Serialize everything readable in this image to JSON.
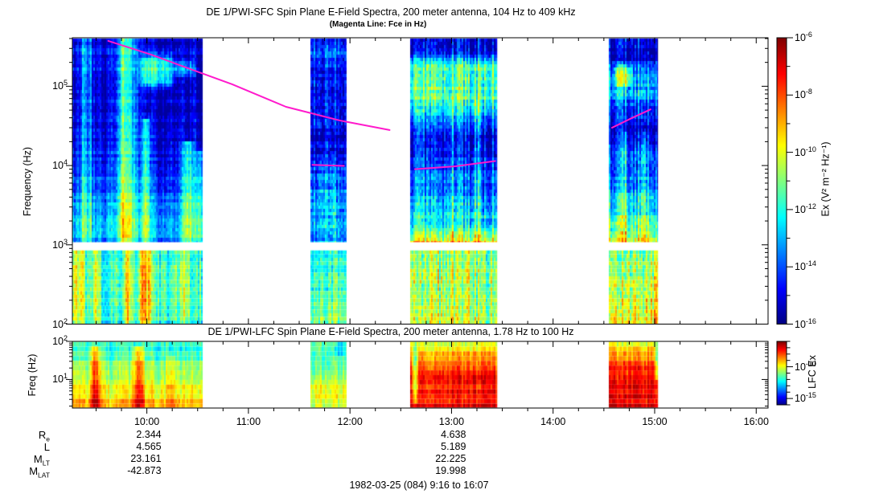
{
  "figure": {
    "title": "DE 1/PWI-SFC  Spin Plane E-Field Spectra, 200 meter antenna, 104 Hz to 409 kHz",
    "subtitle": "(Magenta Line: Fce in Hz)",
    "lfc_title": "DE 1/PWI-LFC  Spin Plane E-Field Spectra, 200 meter antenna, 1.78 Hz to 100 Hz",
    "footer": "1982-03-25 (084) 9:16 to 16:07"
  },
  "axes": {
    "time": {
      "start": "9:16",
      "end": "16:07",
      "hour_labels": [
        "10:00",
        "11:00",
        "12:00",
        "13:00",
        "14:00",
        "15:00",
        "16:00"
      ],
      "minor_minutes": 15
    },
    "sfc_freq": {
      "label": "Frequency (Hz)",
      "min_hz": 100,
      "max_hz": 409000,
      "tick_exponents": [
        5,
        4,
        3,
        2
      ]
    },
    "lfc_freq": {
      "label": "Freq (Hz)",
      "min_hz": 1.78,
      "max_hz": 100,
      "tick_exponents": [
        2,
        1
      ]
    }
  },
  "colorbars": {
    "sfc": {
      "label": "Ex (V² m⁻² Hz⁻¹)",
      "tick_exponents": [
        -6,
        -8,
        -10,
        -12,
        -14,
        -16
      ],
      "max_exp": -6,
      "min_exp": -16
    },
    "lfc": {
      "label": "LFC Ex",
      "tick_exponents": [
        -10,
        -15
      ],
      "max_exp": -6,
      "min_exp": -16
    }
  },
  "ephemeris": {
    "row_labels": [
      {
        "main": "R",
        "sub": "e"
      },
      {
        "main": "L",
        "sub": ""
      },
      {
        "main": "M",
        "sub": "LT"
      },
      {
        "main": "M",
        "sub": "LAT"
      }
    ],
    "columns": [
      {
        "time": "10:00",
        "values": [
          "2.344",
          "4.565",
          "23.161",
          "-42.873"
        ]
      },
      {
        "time": "13:00",
        "values": [
          "4.638",
          "5.189",
          "22.225",
          "19.998"
        ]
      }
    ]
  },
  "chart_data": {
    "type": "heatmap",
    "colormap": "jet",
    "description": "Two time-frequency spectrograms (DE-1 PWI SFC and LFC electric field spectral density) vs UT on 1982-03-25, with data gaps; magenta line is electron cyclotron frequency Fce.",
    "sfc_band_split_hz": [
      850,
      1080
    ],
    "fce_line_hz": [
      {
        "points": [
          [
            9.62,
            373000
          ],
          [
            10.04,
            251000
          ],
          [
            10.3,
            189000
          ],
          [
            10.84,
            106000
          ],
          [
            11.37,
            55000
          ],
          [
            11.9,
            37000
          ],
          [
            12.39,
            28000
          ]
        ]
      },
      {
        "points": [
          [
            11.63,
            10200
          ],
          [
            11.94,
            9900
          ]
        ]
      },
      {
        "points": [
          [
            12.64,
            9000
          ],
          [
            13.04,
            9800
          ],
          [
            13.43,
            11400
          ]
        ]
      },
      {
        "points": [
          [
            14.58,
            30000
          ],
          [
            14.78,
            40000
          ],
          [
            14.96,
            51000
          ]
        ]
      }
    ],
    "segments": [
      {
        "id": 1,
        "start": "9:16",
        "end": "10:33",
        "sfc_upper": {
          "base": [
            [
              0,
              0.07
            ],
            [
              0.55,
              0.09
            ],
            [
              0.62,
              0.14
            ],
            [
              0.75,
              0.2
            ],
            [
              0.88,
              0.26
            ],
            [
              1,
              0.26
            ]
          ],
          "col_amp": 0.08,
          "row_amp": 0.05,
          "cell_amp": 0.05,
          "columns": [
            {
              "p": 0.08,
              "w": 0.018,
              "s": 0.28,
              "y0": 0.0,
              "y1": 1
            },
            {
              "p": 0.13,
              "w": 0.012,
              "s": 0.22,
              "y0": 0.05,
              "y1": 1
            },
            {
              "p": 0.4,
              "w": 0.05,
              "s": 0.42,
              "y0": 0.03,
              "y1": 1
            },
            {
              "p": 0.56,
              "w": 0.02,
              "s": 0.3,
              "y0": 0.45,
              "y1": 1
            },
            {
              "p": 0.88,
              "w": 0.03,
              "s": 0.3,
              "y0": 0.55,
              "y1": 1
            },
            {
              "p": 0.97,
              "w": 0.02,
              "s": 0.25,
              "y0": 0.6,
              "y1": 1
            }
          ],
          "blobs": [
            {
              "x0": 0.48,
              "x1": 0.8,
              "y0": 0.06,
              "y1": 0.26,
              "s": 0.33
            },
            {
              "x0": 0.75,
              "x1": 0.95,
              "y0": 0.1,
              "y1": 0.2,
              "s": 0.18
            }
          ]
        },
        "sfc_lower": {
          "base": [
            [
              0,
              0.4
            ],
            [
              0.6,
              0.44
            ],
            [
              0.9,
              0.42
            ],
            [
              1,
              0.38
            ]
          ],
          "col_amp": 0.09,
          "row_amp": 0.03,
          "cell_amp": 0.06,
          "columns": [
            {
              "p": 0.05,
              "w": 0.03,
              "s": 0.22,
              "y0": 0,
              "y1": 1
            },
            {
              "p": 0.18,
              "w": 0.015,
              "s": 0.2,
              "y0": 0,
              "y1": 1
            },
            {
              "p": 0.42,
              "w": 0.02,
              "s": 0.2,
              "y0": 0,
              "y1": 1
            },
            {
              "p": 0.55,
              "w": 0.04,
              "s": 0.3,
              "y0": 0,
              "y1": 1
            },
            {
              "p": 0.85,
              "w": 0.03,
              "s": 0.15,
              "y0": 0,
              "y1": 1
            }
          ],
          "blobs": []
        },
        "lfc": {
          "base": [
            [
              0,
              0.4
            ],
            [
              0.25,
              0.47
            ],
            [
              0.5,
              0.55
            ],
            [
              0.75,
              0.64
            ],
            [
              1,
              0.7
            ]
          ],
          "col_amp": 0.06,
          "row_amp": 0.05,
          "cell_amp": 0.04,
          "columns": [
            {
              "p": 0.17,
              "w": 0.025,
              "s": 0.28,
              "y0": 0.12,
              "y1": 1
            },
            {
              "p": 0.5,
              "w": 0.03,
              "s": 0.28,
              "y0": 0.1,
              "y1": 1
            },
            {
              "p": 0.75,
              "w": 0.02,
              "s": 0.12,
              "y0": 0.3,
              "y1": 1
            }
          ],
          "blobs": []
        }
      },
      {
        "id": 2,
        "start": "11:37",
        "end": "11:58",
        "sfc_upper": {
          "base": [
            [
              0,
              0.12
            ],
            [
              0.08,
              0.22
            ],
            [
              0.16,
              0.13
            ],
            [
              0.3,
              0.15
            ],
            [
              0.42,
              0.12
            ],
            [
              0.55,
              0.1
            ],
            [
              0.62,
              0.16
            ],
            [
              0.72,
              0.25
            ],
            [
              0.85,
              0.3
            ],
            [
              1,
              0.28
            ]
          ],
          "col_amp": 0.08,
          "row_amp": 0.06,
          "cell_amp": 0.07,
          "columns": [
            {
              "p": 0.3,
              "w": 0.05,
              "s": 0.1,
              "y0": 0.6,
              "y1": 1
            },
            {
              "p": 0.6,
              "w": 0.04,
              "s": 0.12,
              "y0": 0.6,
              "y1": 1
            }
          ],
          "blobs": []
        },
        "sfc_lower": {
          "base": [
            [
              0,
              0.42
            ],
            [
              0.5,
              0.46
            ],
            [
              0.9,
              0.5
            ],
            [
              1,
              0.52
            ]
          ],
          "col_amp": 0.08,
          "row_amp": 0.04,
          "cell_amp": 0.06,
          "columns": [],
          "blobs": []
        },
        "lfc": {
          "base": [
            [
              0,
              0.47
            ],
            [
              0.3,
              0.52
            ],
            [
              0.6,
              0.56
            ],
            [
              1,
              0.62
            ]
          ],
          "col_amp": 0.05,
          "row_amp": 0.06,
          "cell_amp": 0.04,
          "columns": [],
          "blobs": [
            {
              "x0": 0.55,
              "x1": 1,
              "y0": 0,
              "y1": 0.22,
              "s": -0.14
            }
          ]
        }
      },
      {
        "id": 3,
        "start": "12:36",
        "end": "13:27",
        "sfc_upper": {
          "base": [
            [
              0,
              0.1
            ],
            [
              0.08,
              0.14
            ],
            [
              0.13,
              0.46
            ],
            [
              0.3,
              0.47
            ],
            [
              0.37,
              0.33
            ],
            [
              0.44,
              0.14
            ],
            [
              0.58,
              0.13
            ],
            [
              0.68,
              0.22
            ],
            [
              0.8,
              0.3
            ],
            [
              0.9,
              0.38
            ],
            [
              0.97,
              0.52
            ],
            [
              1,
              0.65
            ]
          ],
          "col_amp": 0.12,
          "row_amp": 0.05,
          "cell_amp": 0.07,
          "columns": [
            {
              "p": 0.1,
              "w": 0.03,
              "s": 0.1,
              "y0": 0.4,
              "y1": 1
            },
            {
              "p": 0.45,
              "w": 0.03,
              "s": 0.12,
              "y0": 0.35,
              "y1": 1
            },
            {
              "p": 0.75,
              "w": 0.03,
              "s": 0.12,
              "y0": 0.35,
              "y1": 1
            }
          ],
          "blobs": []
        },
        "sfc_lower": {
          "base": [
            [
              0,
              0.52
            ],
            [
              0.5,
              0.55
            ],
            [
              1,
              0.56
            ]
          ],
          "col_amp": 0.12,
          "row_amp": 0.04,
          "cell_amp": 0.08,
          "columns": [],
          "blobs": []
        },
        "lfc": {
          "base": [
            [
              0,
              0.6
            ],
            [
              0.18,
              0.7
            ],
            [
              0.45,
              0.84
            ],
            [
              1,
              0.88
            ]
          ],
          "col_amp": 0.05,
          "row_amp": 0.04,
          "cell_amp": 0.04,
          "columns": [],
          "blobs": [
            {
              "x0": 0,
              "x1": 0.08,
              "y0": 0,
              "y1": 1,
              "s": -0.22
            }
          ]
        }
      },
      {
        "id": 4,
        "start": "14:33",
        "end": "15:02",
        "sfc_upper": {
          "base": [
            [
              0,
              0.08
            ],
            [
              0.1,
              0.1
            ],
            [
              0.17,
              0.28
            ],
            [
              0.28,
              0.32
            ],
            [
              0.34,
              0.14
            ],
            [
              0.48,
              0.12
            ],
            [
              0.6,
              0.22
            ],
            [
              0.72,
              0.28
            ],
            [
              0.85,
              0.38
            ],
            [
              0.95,
              0.5
            ],
            [
              1,
              0.58
            ]
          ],
          "col_amp": 0.11,
          "row_amp": 0.05,
          "cell_amp": 0.07,
          "columns": [
            {
              "p": 0.3,
              "w": 0.04,
              "s": 0.12,
              "y0": 0.5,
              "y1": 1
            },
            {
              "p": 0.7,
              "w": 0.04,
              "s": 0.14,
              "y0": 0.5,
              "y1": 1
            }
          ],
          "blobs": [
            {
              "x0": 0.05,
              "x1": 0.5,
              "y0": 0.12,
              "y1": 0.25,
              "s": 0.25
            }
          ]
        },
        "sfc_lower": {
          "base": [
            [
              0,
              0.5
            ],
            [
              0.4,
              0.56
            ],
            [
              0.8,
              0.62
            ],
            [
              1,
              0.64
            ]
          ],
          "col_amp": 0.12,
          "row_amp": 0.04,
          "cell_amp": 0.08,
          "columns": [],
          "blobs": []
        },
        "lfc": {
          "base": [
            [
              0,
              0.55
            ],
            [
              0.15,
              0.68
            ],
            [
              0.35,
              0.82
            ],
            [
              1,
              0.9
            ]
          ],
          "col_amp": 0.05,
          "row_amp": 0.04,
          "cell_amp": 0.04,
          "columns": [],
          "blobs": [
            {
              "x0": 0.93,
              "x1": 1,
              "y0": 0,
              "y1": 0.65,
              "s": -0.2
            }
          ]
        }
      }
    ],
    "line_color": "#FF1ACC"
  }
}
